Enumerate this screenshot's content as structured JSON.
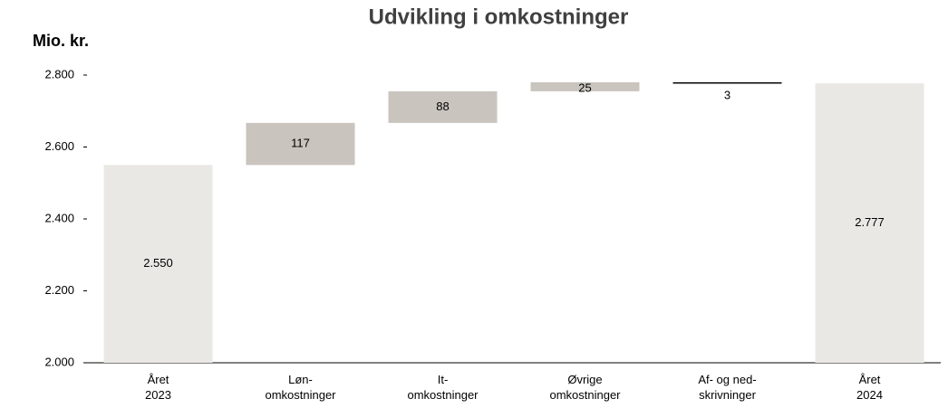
{
  "chart_data": {
    "type": "waterfall",
    "title": "Udvikling i omkostninger",
    "y_label": "Mio. kr.",
    "categories": [
      "Året\n2023",
      "Løn-\nomkostninger",
      "It-\nomkostninger",
      "Øvrige\nomkostninger",
      "Af- og ned-\nskrivninger",
      "Året\n2024"
    ],
    "values": [
      2550,
      117,
      88,
      25,
      -3,
      2777
    ],
    "value_labels": [
      "2.550",
      "117",
      "88",
      "25",
      "3",
      "2.777"
    ],
    "measure": [
      "absolute",
      "relative",
      "relative",
      "relative",
      "relative",
      "total"
    ],
    "colors": [
      "#eae8e4",
      "#c9c4bd",
      "#c9c4bd",
      "#c9c4bd",
      "#000000",
      "#eae8e4"
    ],
    "ylim": [
      2000,
      2800
    ],
    "yticks": [
      {
        "value": 2000,
        "label": "2.000"
      },
      {
        "value": 2200,
        "label": "2.200"
      },
      {
        "value": 2400,
        "label": "2.400"
      },
      {
        "value": 2600,
        "label": "2.600"
      },
      {
        "value": 2800,
        "label": "2.800"
      }
    ]
  }
}
